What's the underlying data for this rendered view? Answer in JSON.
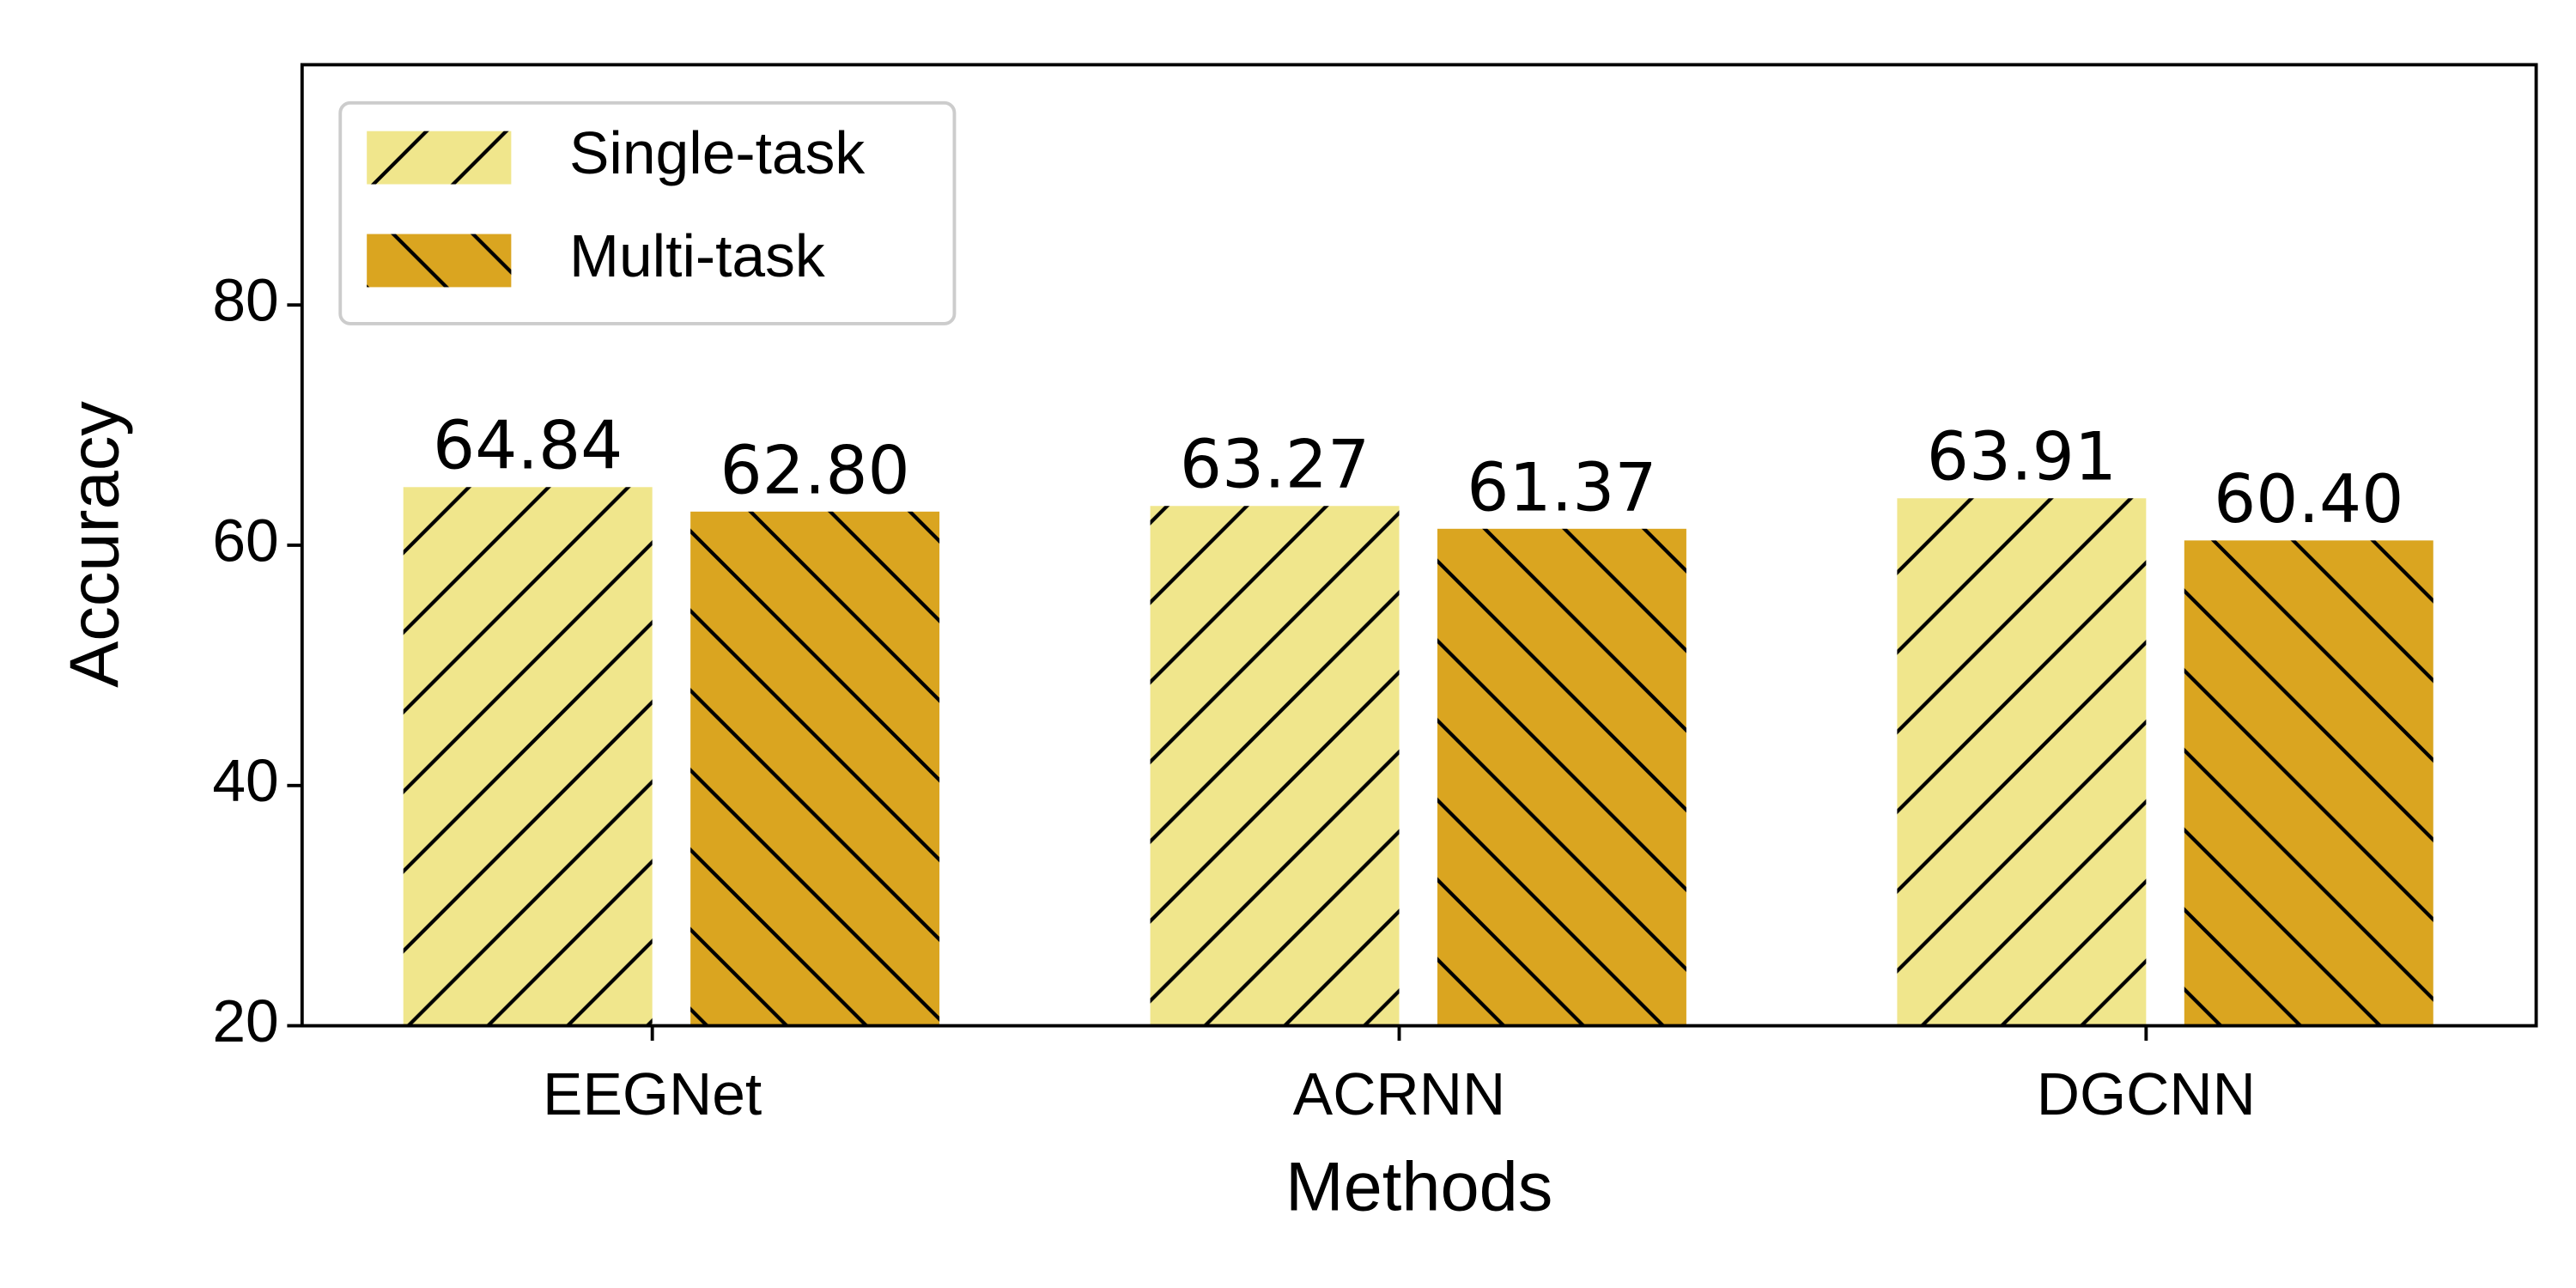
{
  "chart_data": {
    "type": "bar",
    "x_label": "Methods",
    "y_label": "Accuracy",
    "categories": [
      "EEGNet",
      "ACRNN",
      "DGCNN"
    ],
    "series": [
      {
        "name": "Single-task",
        "color": "#f0e68c",
        "hatch": "/",
        "values": [
          64.84,
          63.27,
          63.91
        ],
        "value_labels": [
          "64.84",
          "63.27",
          "63.91"
        ]
      },
      {
        "name": "Multi-task",
        "color": "#daa520",
        "hatch": "\\",
        "values": [
          62.8,
          61.37,
          60.4
        ],
        "value_labels": [
          "62.80",
          "61.37",
          "60.40"
        ]
      }
    ],
    "ylim": [
      20,
      100
    ],
    "yticks": [
      20,
      40,
      60,
      80
    ],
    "grid": false,
    "legend": "upper left"
  }
}
